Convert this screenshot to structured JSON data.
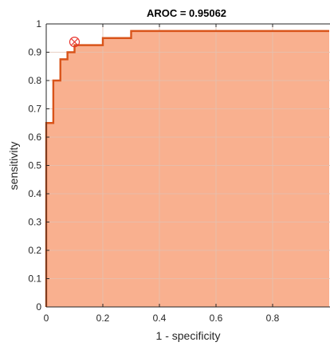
{
  "chart_data": {
    "type": "area",
    "title": "AROC = 0.95062",
    "xlabel": "1 - specificity",
    "ylabel": "sensitivity",
    "xlim": [
      0,
      1
    ],
    "ylim": [
      0,
      1
    ],
    "x_ticks": [
      0,
      0.2,
      0.4,
      0.6,
      0.8
    ],
    "x_tick_labels": [
      "0",
      "0.2",
      "0.4",
      "0.6",
      "0.8"
    ],
    "y_ticks": [
      0,
      0.1,
      0.2,
      0.3,
      0.4,
      0.5,
      0.6,
      0.7,
      0.8,
      0.9,
      1
    ],
    "y_tick_labels": [
      "0",
      "0.1",
      "0.2",
      "0.3",
      "0.4",
      "0.5",
      "0.6",
      "0.7",
      "0.8",
      "0.9",
      "1"
    ],
    "grid": true,
    "series": [
      {
        "x": [
          0,
          0,
          0.025,
          0.025,
          0.05,
          0.05,
          0.075,
          0.075,
          0.1,
          0.1,
          0.125,
          0.125,
          0.2,
          0.2,
          0.3,
          0.3,
          1
        ],
        "y": [
          0,
          0.65,
          0.65,
          0.8,
          0.8,
          0.875,
          0.875,
          0.9,
          0.9,
          0.925,
          0.925,
          0.925,
          0.925,
          0.95,
          0.95,
          0.975,
          0.975
        ]
      }
    ],
    "operating_point": {
      "x": 0.1,
      "y": 0.925
    },
    "colors": {
      "fill": "#f9b08f",
      "line": "#d9541a",
      "marker": "#e8322b",
      "grid": "#e2c2b2",
      "axis": "#262626"
    }
  }
}
